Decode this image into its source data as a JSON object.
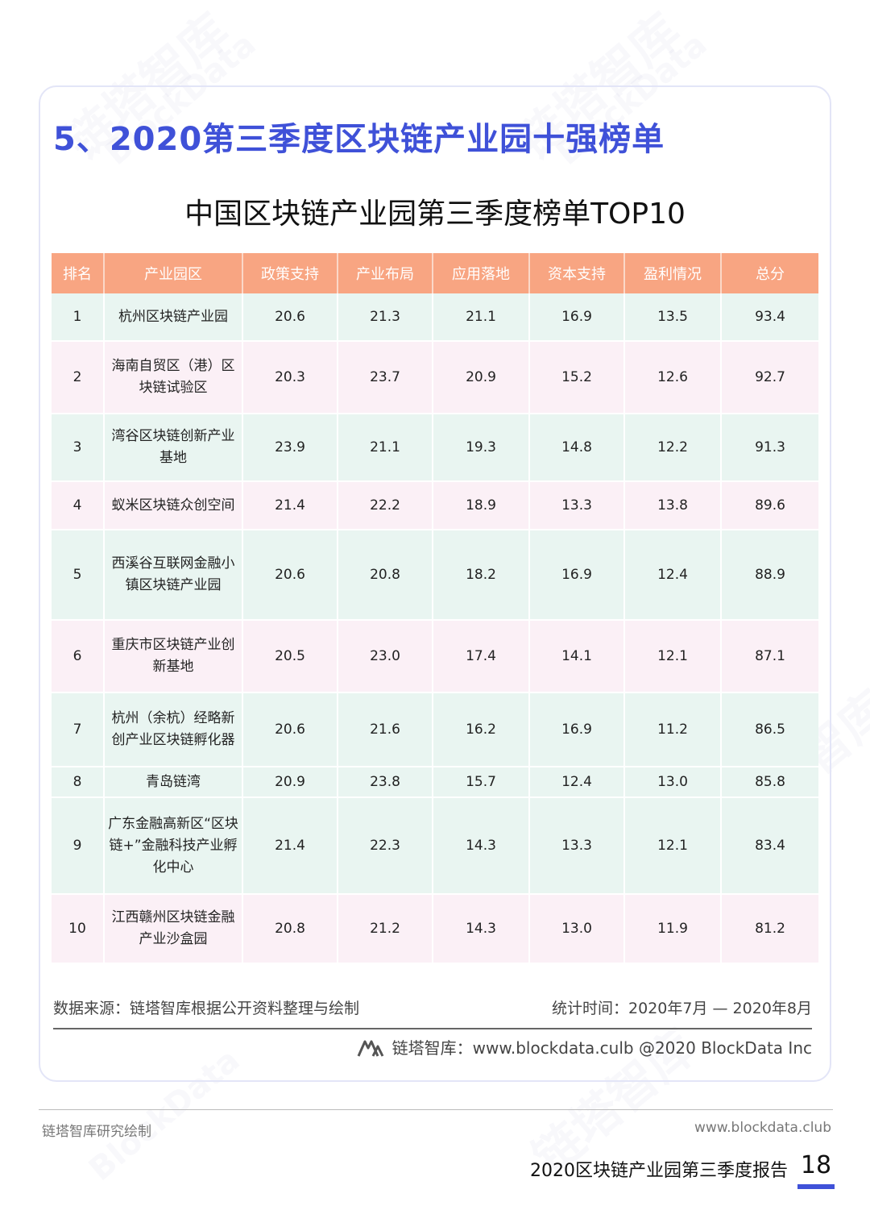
{
  "section_title": "5、2020第三季度区块链产业园十强榜单",
  "table_title": "中国区块链产业园第三季度榜单TOP10",
  "headers": [
    "排名",
    "产业园区",
    "政策支持",
    "产业布局",
    "应用落地",
    "资本支持",
    "盈利情况",
    "总分"
  ],
  "rows": [
    {
      "rank": "1",
      "park": "杭州区块链产业园",
      "policy": "20.6",
      "layout": "21.3",
      "application": "21.1",
      "capital": "16.9",
      "profit": "13.5",
      "total": "93.4"
    },
    {
      "rank": "2",
      "park": "海南自贸区（港）区块链试验区",
      "policy": "20.3",
      "layout": "23.7",
      "application": "20.9",
      "capital": "15.2",
      "profit": "12.6",
      "total": "92.7"
    },
    {
      "rank": "3",
      "park": "湾谷区块链创新产业基地",
      "policy": "23.9",
      "layout": "21.1",
      "application": "19.3",
      "capital": "14.8",
      "profit": "12.2",
      "total": "91.3"
    },
    {
      "rank": "4",
      "park": "蚁米区块链众创空间",
      "policy": "21.4",
      "layout": "22.2",
      "application": "18.9",
      "capital": "13.3",
      "profit": "13.8",
      "total": "89.6"
    },
    {
      "rank": "5",
      "park": "西溪谷互联网金融小镇区块链产业园",
      "policy": "20.6",
      "layout": "20.8",
      "application": "18.2",
      "capital": "16.9",
      "profit": "12.4",
      "total": "88.9"
    },
    {
      "rank": "6",
      "park": "重庆市区块链产业创新基地",
      "policy": "20.5",
      "layout": "23.0",
      "application": "17.4",
      "capital": "14.1",
      "profit": "12.1",
      "total": "87.1"
    },
    {
      "rank": "7",
      "park": "杭州（余杭）经略新创产业区块链孵化器",
      "policy": "20.6",
      "layout": "21.6",
      "application": "16.2",
      "capital": "16.9",
      "profit": "11.2",
      "total": "86.5"
    },
    {
      "rank": "8",
      "park": "青岛链湾",
      "policy": "20.9",
      "layout": "23.8",
      "application": "15.7",
      "capital": "12.4",
      "profit": "13.0",
      "total": "85.8"
    },
    {
      "rank": "9",
      "park": "广东金融高新区“区块链+”金融科技产业孵化中心",
      "policy": "21.4",
      "layout": "22.3",
      "application": "14.3",
      "capital": "13.3",
      "profit": "12.1",
      "total": "83.4"
    },
    {
      "rank": "10",
      "park": "江西赣州区块链金融产业沙盒园",
      "policy": "20.8",
      "layout": "21.2",
      "application": "14.3",
      "capital": "13.0",
      "profit": "11.9",
      "total": "81.2"
    }
  ],
  "data_source": "数据来源：链塔智库根据公开资料整理与绘制",
  "stat_time": "统计时间：2020年7月 — 2020年8月",
  "credit": "链塔智库：www.blockdata.culb  @2020 BlockData Inc",
  "footer": {
    "left": "链塔智库研究绘制",
    "right": "www.blockdata.club",
    "report_title": "2020区块链产业园第三季度报告",
    "page_number": "18"
  },
  "watermark": {
    "cn": "链塔智库",
    "en": "BlockData"
  },
  "colors": {
    "accent": "#3f51d8",
    "header_bg": "#f8a582",
    "row_green": "#e9f5f1",
    "row_pink": "#fbf0f6"
  }
}
